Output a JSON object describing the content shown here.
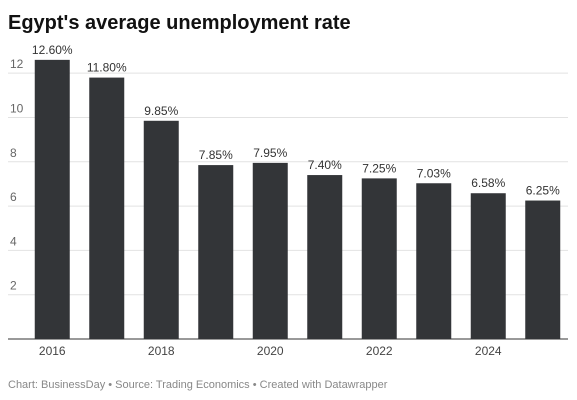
{
  "chart_data": {
    "type": "bar",
    "title": "Egypt's average unemployment rate",
    "categories": [
      "2016",
      null,
      "2018",
      null,
      "2020",
      null,
      "2022",
      null,
      "2024",
      null
    ],
    "values": [
      12.6,
      11.8,
      9.85,
      7.85,
      7.95,
      7.4,
      7.25,
      7.03,
      6.58,
      6.25
    ],
    "value_labels": [
      "12.60%",
      "11.80%",
      "9.85%",
      "7.85%",
      "7.95%",
      "7.40%",
      "7.25%",
      "7.03%",
      "6.58%",
      "6.25%"
    ],
    "color": "#333538",
    "ylim": [
      0,
      13
    ],
    "yticks": [
      2,
      4,
      6,
      8,
      10,
      12
    ],
    "grid": true,
    "source": "Chart: BusinessDay • Source: Trading Economics • Created with Datawrapper"
  }
}
